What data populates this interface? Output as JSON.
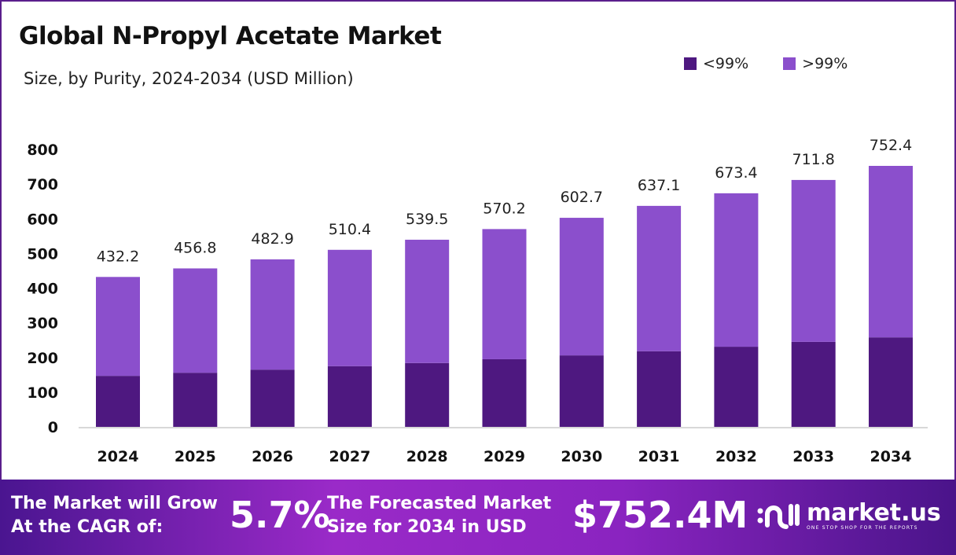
{
  "title": "Global N-Propyl Acetate Market",
  "subtitle": "Size, by Purity, 2024-2034 (USD Million)",
  "colors": {
    "low": "#4e1880",
    "high": "#8b4fcc"
  },
  "chart_data": {
    "type": "bar",
    "stacked": true,
    "categories": [
      "2024",
      "2025",
      "2026",
      "2027",
      "2028",
      "2029",
      "2030",
      "2031",
      "2032",
      "2033",
      "2034"
    ],
    "series": [
      {
        "name": "<99%",
        "values": [
          147,
          156,
          165,
          175,
          184,
          195,
          206,
          218,
          231,
          245,
          258
        ]
      },
      {
        "name": ">99%",
        "values": [
          285.2,
          300.8,
          317.9,
          335.4,
          355.5,
          375.2,
          396.7,
          419.1,
          442.4,
          466.8,
          494.4
        ]
      }
    ],
    "totals": [
      "432.2",
      "456.8",
      "482.9",
      "510.4",
      "539.5",
      "570.2",
      "602.7",
      "637.1",
      "673.4",
      "711.8",
      "752.4"
    ],
    "yticks": [
      0,
      100,
      200,
      300,
      400,
      500,
      600,
      700,
      800
    ],
    "ylim": [
      0,
      800
    ],
    "grid": false,
    "legend": "top-right"
  },
  "banner": {
    "cagr_label_1": "The Market will Grow",
    "cagr_label_2": "At the CAGR of:",
    "cagr_value": "5.7%",
    "forecast_label_1": "The Forecasted Market",
    "forecast_label_2": "Size for 2034 in USD",
    "forecast_value": "$752.4M",
    "logo_name": "market.us",
    "logo_tagline": "ONE STOP SHOP FOR THE REPORTS"
  }
}
